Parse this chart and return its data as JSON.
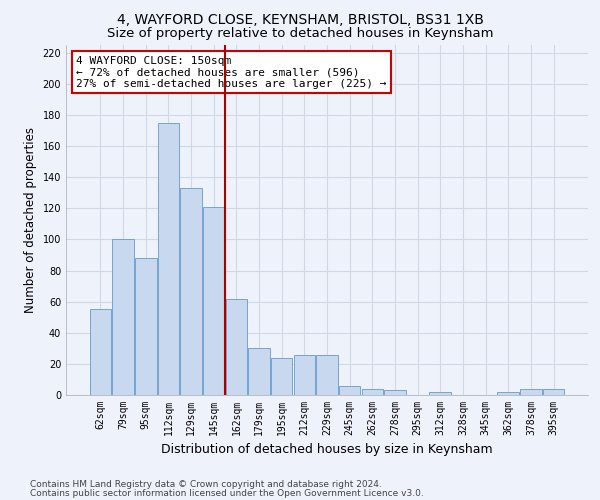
{
  "title1": "4, WAYFORD CLOSE, KEYNSHAM, BRISTOL, BS31 1XB",
  "title2": "Size of property relative to detached houses in Keynsham",
  "xlabel": "Distribution of detached houses by size in Keynsham",
  "ylabel": "Number of detached properties",
  "footer1": "Contains HM Land Registry data © Crown copyright and database right 2024.",
  "footer2": "Contains public sector information licensed under the Open Government Licence v3.0.",
  "categories": [
    "62sqm",
    "79sqm",
    "95sqm",
    "112sqm",
    "129sqm",
    "145sqm",
    "162sqm",
    "179sqm",
    "195sqm",
    "212sqm",
    "229sqm",
    "245sqm",
    "262sqm",
    "278sqm",
    "295sqm",
    "312sqm",
    "328sqm",
    "345sqm",
    "362sqm",
    "378sqm",
    "395sqm"
  ],
  "values": [
    55,
    100,
    88,
    175,
    133,
    121,
    62,
    30,
    24,
    26,
    26,
    6,
    4,
    3,
    0,
    2,
    0,
    0,
    2,
    4,
    4
  ],
  "bar_color": "#c8d8ee",
  "bar_edge_color": "#6699cc",
  "property_line_x": 5.5,
  "annotation_line1": "4 WAYFORD CLOSE: 150sqm",
  "annotation_line2": "← 72% of detached houses are smaller (596)",
  "annotation_line3": "27% of semi-detached houses are larger (225) →",
  "annotation_box_color": "#ffffff",
  "annotation_box_edge_color": "#cc0000",
  "vline_color": "#aa0000",
  "ylim": [
    0,
    225
  ],
  "yticks": [
    0,
    20,
    40,
    60,
    80,
    100,
    120,
    140,
    160,
    180,
    200,
    220
  ],
  "background_color": "#eef2fa",
  "grid_color": "#d0d8e8",
  "title1_fontsize": 10,
  "title2_fontsize": 9.5,
  "xlabel_fontsize": 9,
  "ylabel_fontsize": 8.5,
  "tick_fontsize": 7,
  "annotation_fontsize": 8,
  "footer_fontsize": 6.5
}
